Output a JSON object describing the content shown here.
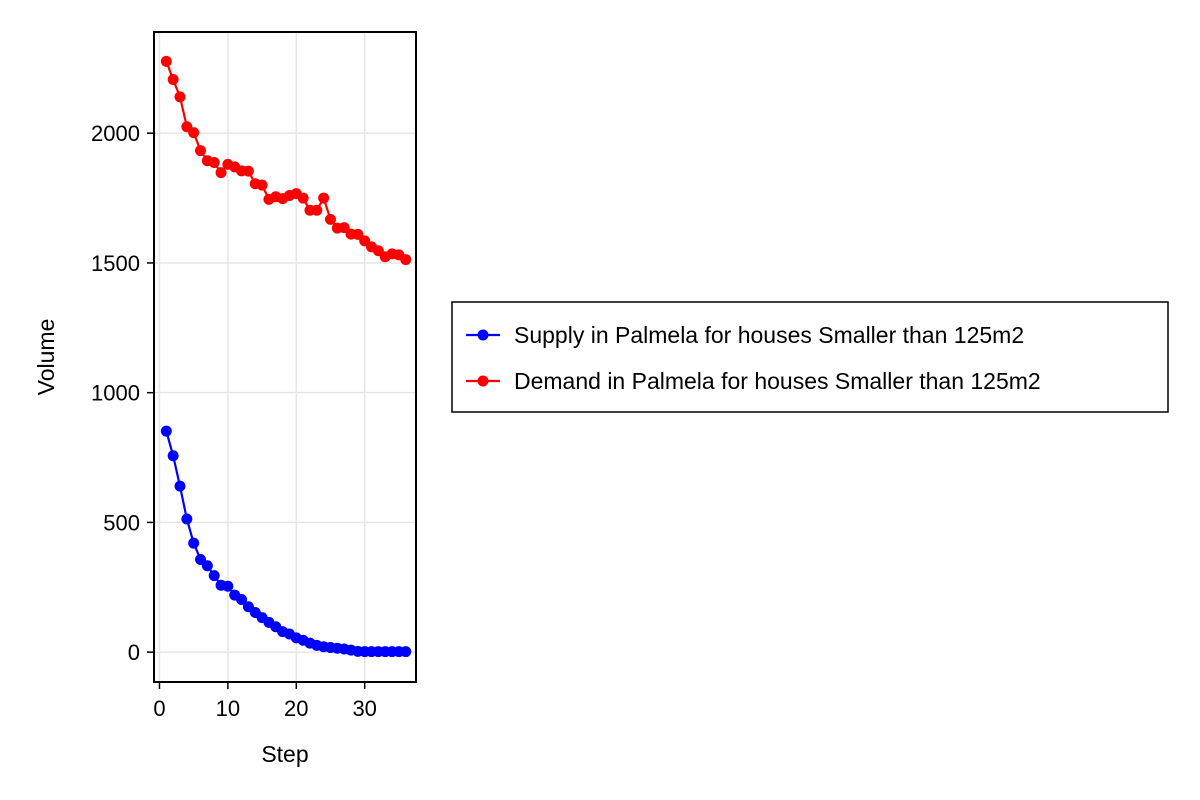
{
  "chart_data": {
    "type": "line",
    "xlabel": "Step",
    "ylabel": "Volume",
    "xlim": [
      -0.8,
      37.5
    ],
    "ylim": [
      -115,
      2390
    ],
    "xticks": [
      0,
      10,
      20,
      30
    ],
    "yticks": [
      0,
      500,
      1000,
      1500,
      2000
    ],
    "grid": true,
    "legend_position": "right",
    "series": [
      {
        "name": "Supply in Palmela for houses Smaller than 125m2",
        "color": "#0000ff",
        "marker": "circle",
        "x": [
          1,
          2,
          3,
          4,
          5,
          6,
          7,
          8,
          9,
          10,
          11,
          12,
          13,
          14,
          15,
          16,
          17,
          18,
          19,
          20,
          21,
          22,
          23,
          24,
          25,
          26,
          27,
          28,
          29,
          30,
          31,
          32,
          33,
          34,
          35,
          36
        ],
        "y": [
          852,
          757,
          640,
          513,
          420,
          357,
          333,
          295,
          258,
          254,
          220,
          203,
          175,
          153,
          133,
          115,
          98,
          79,
          70,
          55,
          46,
          35,
          26,
          21,
          18,
          15,
          12,
          8,
          3,
          2,
          2,
          2,
          2,
          2,
          2,
          2
        ]
      },
      {
        "name": "Demand in Palmela for houses Smaller than 125m2",
        "color": "#ff0000",
        "marker": "circle",
        "x": [
          1,
          2,
          3,
          4,
          5,
          6,
          7,
          8,
          9,
          10,
          11,
          12,
          13,
          14,
          15,
          16,
          17,
          18,
          19,
          20,
          21,
          22,
          23,
          24,
          25,
          26,
          27,
          28,
          29,
          30,
          31,
          32,
          33,
          34,
          35,
          36
        ],
        "y": [
          2277,
          2207,
          2140,
          2025,
          2002,
          1933,
          1894,
          1887,
          1848,
          1880,
          1870,
          1855,
          1854,
          1805,
          1800,
          1745,
          1755,
          1748,
          1760,
          1767,
          1750,
          1703,
          1703,
          1750,
          1668,
          1634,
          1636,
          1611,
          1610,
          1585,
          1562,
          1547,
          1524,
          1535,
          1531,
          1513
        ]
      }
    ]
  }
}
